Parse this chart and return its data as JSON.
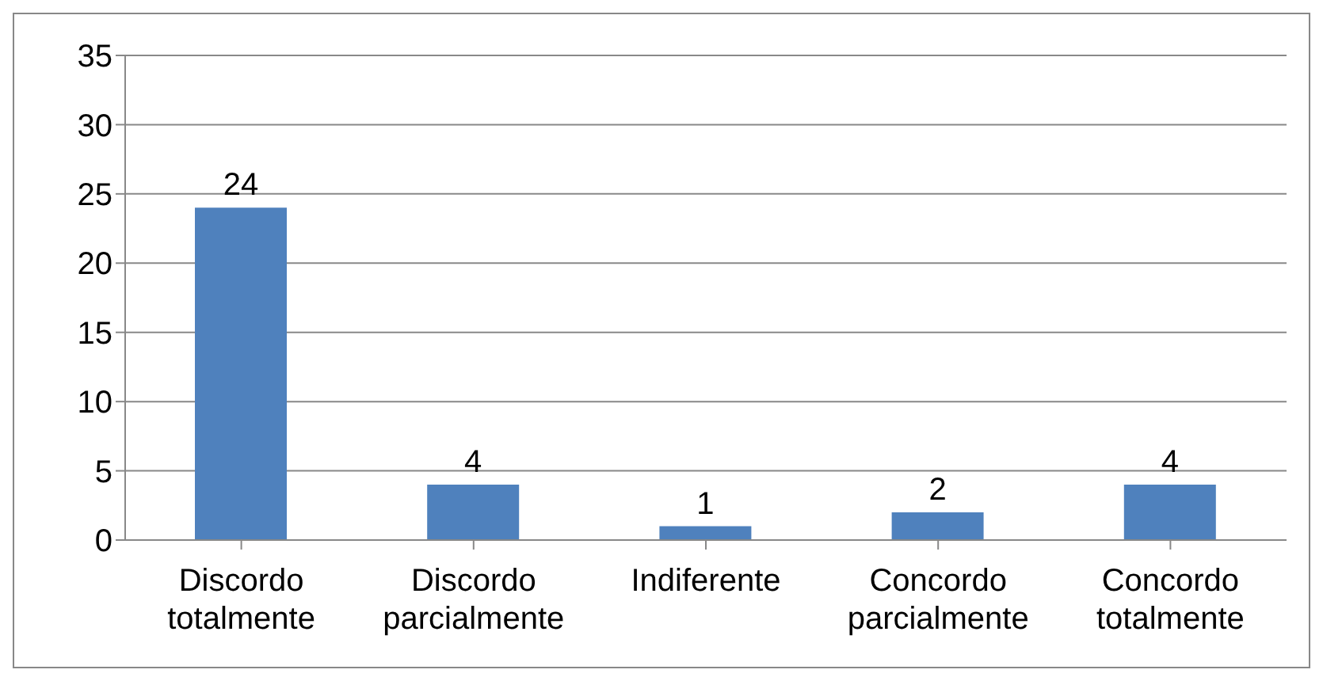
{
  "chart_data": {
    "type": "bar",
    "categories": [
      "Discordo totalmente",
      "Discordo parcialmente",
      "Indiferente",
      "Concordo parcialmente",
      "Concordo totalmente"
    ],
    "values": [
      24,
      4,
      1,
      2,
      4
    ],
    "color": "#4f81bd",
    "ylim": [
      0,
      35
    ],
    "yticks": [
      0,
      5,
      10,
      15,
      20,
      25,
      30,
      35
    ],
    "grid": "y",
    "data_labels": true
  }
}
